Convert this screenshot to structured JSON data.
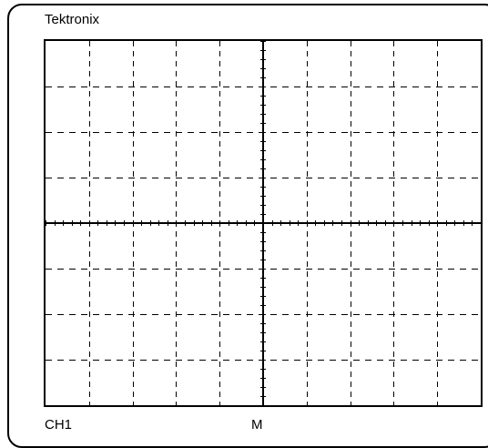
{
  "scope": {
    "brand": "Tektronix",
    "channel_label": "CH1",
    "timebase_label": "M"
  },
  "graticule": {
    "horizontal_divisions": 10,
    "vertical_divisions": 8,
    "minor_ticks_per_division": 5,
    "line_color": "#000000"
  }
}
